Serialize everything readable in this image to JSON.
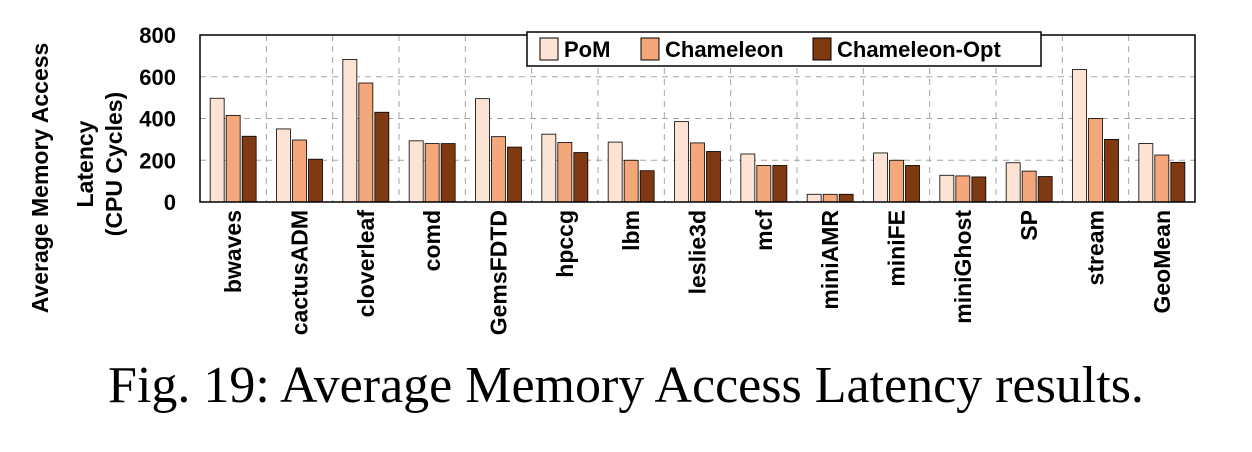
{
  "caption": "Fig. 19: Average Memory Access Latency results.",
  "chart_data": {
    "type": "bar",
    "ylabel_lines": [
      "Average Memory Access",
      "Latency",
      "(CPU Cycles)"
    ],
    "ylim": [
      0,
      800
    ],
    "yticks": [
      0,
      200,
      400,
      600,
      800
    ],
    "grid": true,
    "legend_position": "top-right",
    "categories": [
      "bwaves",
      "cactusADM",
      "cloverleaf",
      "comd",
      "GemsFDTD",
      "hpccg",
      "lbm",
      "leslie3d",
      "mcf",
      "miniAMR",
      "miniFE",
      "miniGhost",
      "SP",
      "stream",
      "GeoMean"
    ],
    "series": [
      {
        "name": "PoM",
        "color": "#fde3d3",
        "values": [
          497,
          350,
          683,
          293,
          495,
          325,
          287,
          385,
          230,
          37,
          235,
          128,
          188,
          635,
          280
        ]
      },
      {
        "name": "Chameleon",
        "color": "#f4a77a",
        "values": [
          415,
          297,
          570,
          280,
          313,
          285,
          200,
          283,
          175,
          37,
          200,
          125,
          148,
          400,
          225
        ]
      },
      {
        "name": "Chameleon-Opt",
        "color": "#7f3a12",
        "values": [
          315,
          205,
          430,
          280,
          263,
          237,
          150,
          242,
          175,
          37,
          175,
          120,
          122,
          300,
          190
        ]
      }
    ]
  }
}
